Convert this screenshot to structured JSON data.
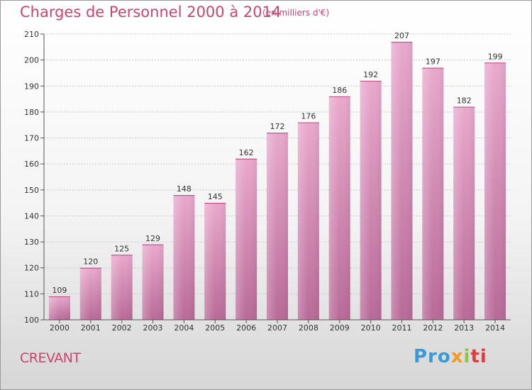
{
  "chart_data": {
    "type": "bar",
    "title": "Charges de Personnel 2000 à 2014",
    "subtitle": "(en milliers d'€)",
    "categories": [
      "2000",
      "2001",
      "2002",
      "2003",
      "2004",
      "2005",
      "2006",
      "2007",
      "2008",
      "2009",
      "2010",
      "2011",
      "2012",
      "2013",
      "2014"
    ],
    "values": [
      109,
      120,
      125,
      129,
      148,
      145,
      162,
      172,
      176,
      186,
      192,
      207,
      197,
      182,
      199
    ],
    "ylim": [
      100,
      210
    ],
    "yticks": [
      100,
      110,
      120,
      130,
      140,
      150,
      160,
      170,
      180,
      190,
      200,
      210
    ],
    "grid": true,
    "bar_color": "#d98ab4",
    "xlabel": "",
    "ylabel": ""
  },
  "place_name": "CREVANT",
  "brand": {
    "p1": "Pro",
    "p2": "x",
    "p3": "i",
    "p4": "ti"
  }
}
